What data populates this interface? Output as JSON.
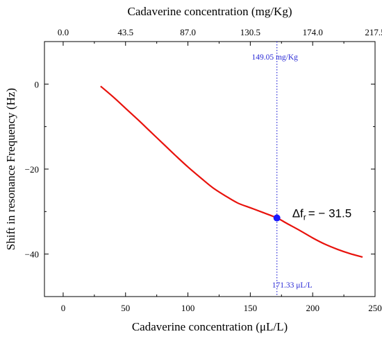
{
  "chart_data": {
    "type": "line",
    "xlabel": "Cadaverine concentration (μL/L)",
    "ylabel": "Shift in resonance Frequency (Hz)",
    "top_xlabel": "Cadaverine concentration (mg/Kg)",
    "xlim": [
      -15,
      250
    ],
    "ylim": [
      -50,
      10
    ],
    "x_ticks": [
      0,
      50,
      100,
      150,
      200,
      250
    ],
    "x_tick_labels": [
      "0",
      "50",
      "100",
      "150",
      "200",
      "250"
    ],
    "y_ticks": [
      0,
      -20,
      -40
    ],
    "y_tick_labels": [
      "0",
      "−20",
      "−40"
    ],
    "top_x_ticks_at": [
      0,
      43.5,
      87.0,
      130.5,
      174.0,
      217.5
    ],
    "top_x_tick_labels": [
      "0.0",
      "43.5",
      "87.0",
      "130.5",
      "174.0",
      "217.5"
    ],
    "series": [
      {
        "color": "#e8120c",
        "x": [
          30,
          40,
          50,
          60,
          70,
          80,
          90,
          100,
          110,
          120,
          130,
          140,
          150,
          160,
          171.33,
          180,
          190,
          200,
          210,
          220,
          230,
          240
        ],
        "y": [
          -0.5,
          -3.0,
          -5.7,
          -8.4,
          -11.2,
          -14.0,
          -16.8,
          -19.5,
          -22.0,
          -24.4,
          -26.3,
          -28.0,
          -29.1,
          -30.2,
          -31.5,
          -32.9,
          -34.5,
          -36.2,
          -37.7,
          -38.9,
          -39.9,
          -40.7
        ]
      }
    ],
    "highlight_point": {
      "x": 171.33,
      "y": -31.5,
      "color": "#1a1aff"
    },
    "vline": {
      "x": 171.33,
      "color": "#2a2ad6"
    },
    "annotations": {
      "top_value": "149.05 mg/Kg",
      "bottom_value": "171.33 μL/L",
      "delta_prefix": "Δf",
      "delta_sub": "r",
      "delta_value": "= − 31.5"
    },
    "grid": false,
    "legend": "none"
  }
}
